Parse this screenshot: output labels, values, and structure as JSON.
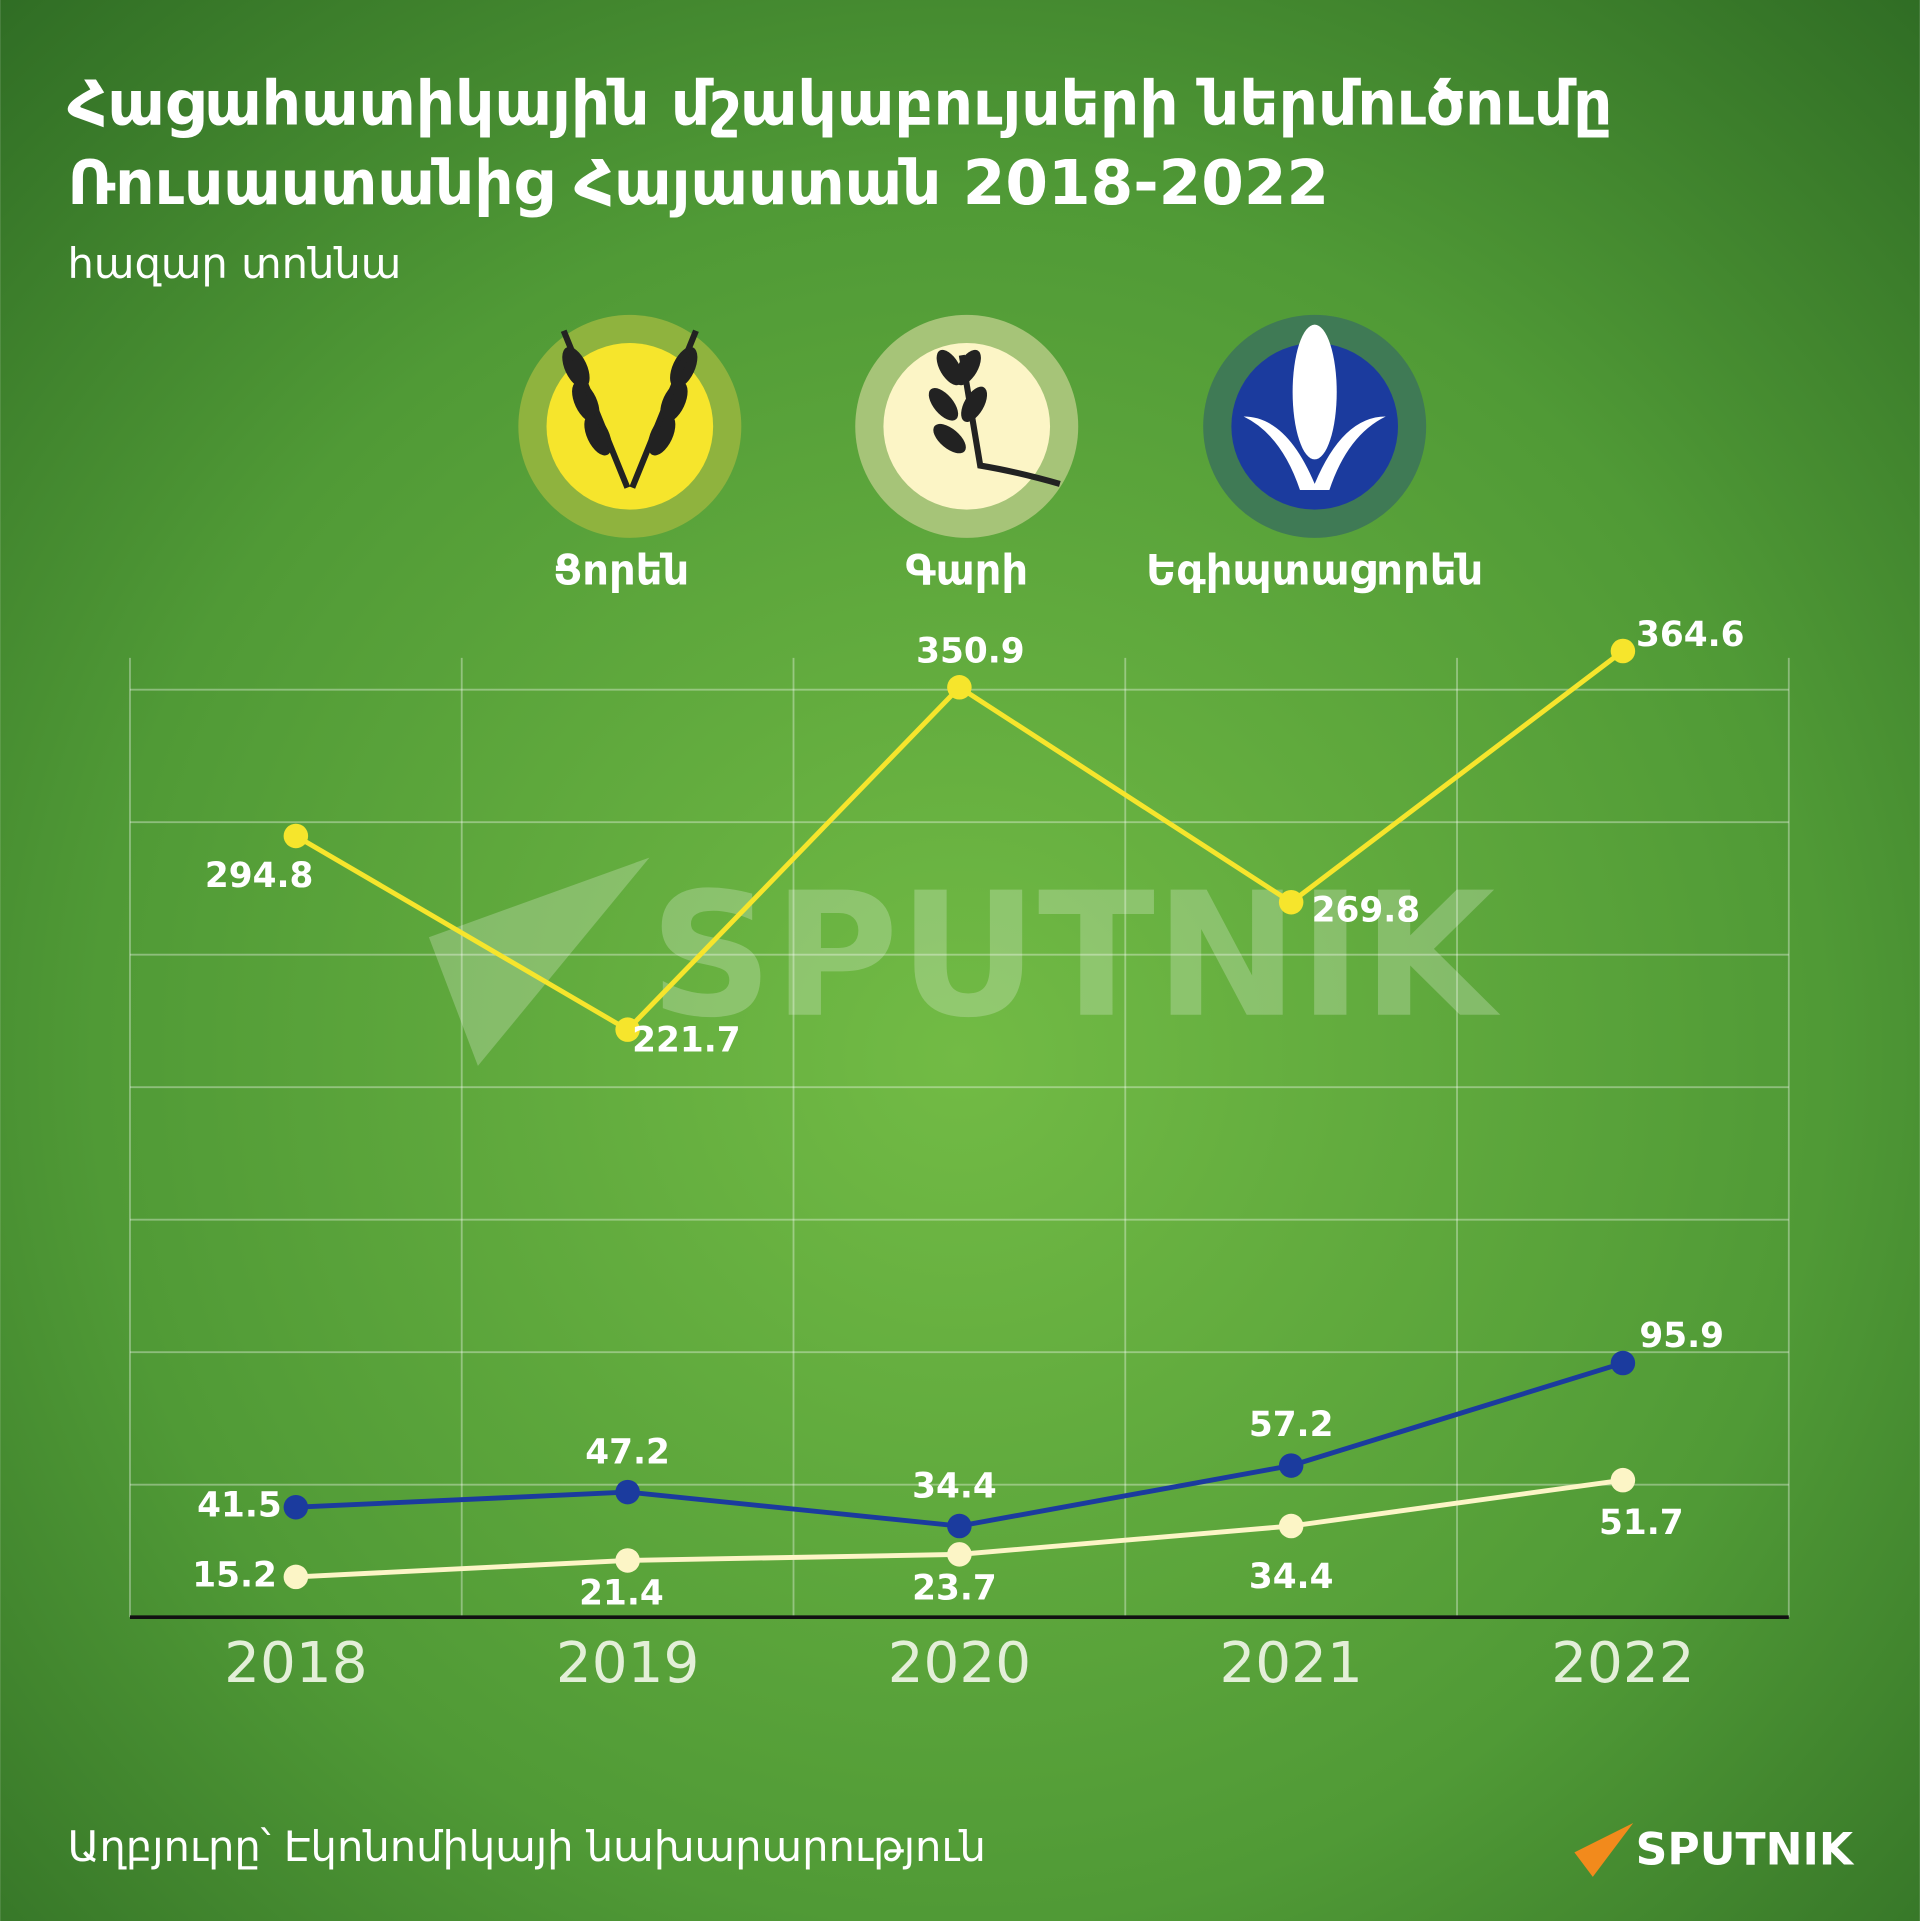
{
  "chart_data": {
    "type": "line",
    "title": [
      "Հացահատիկային մշակաբույսերի ներմուծումը",
      "Ռուսաստանից Հայաստան 2018-2022"
    ],
    "subtitle": "հազար տոննա",
    "categories": [
      "2018",
      "2019",
      "2020",
      "2021",
      "2022"
    ],
    "series": [
      {
        "name": "Ցորեն",
        "color": "#f6e52c",
        "values": [
          294.8,
          221.7,
          350.9,
          269.8,
          364.6
        ]
      },
      {
        "name": "Գարի",
        "color": "#fcf5c6",
        "values": [
          15.2,
          21.4,
          23.7,
          34.4,
          51.7
        ]
      },
      {
        "name": "Եգիպտացորեն",
        "color": "#1b3b9e",
        "values": [
          41.5,
          47.2,
          34.4,
          57.2,
          95.9
        ]
      }
    ],
    "ylim": [
      0,
      362
    ],
    "yticks": [
      0,
      50,
      100,
      150,
      200,
      250,
      300,
      350
    ],
    "grid": true,
    "source": "Աղբյուրը՝ Էկոնոմիկայի նախարարություն",
    "watermark": "SPUTNIK",
    "logo": "SPUTNIK"
  }
}
